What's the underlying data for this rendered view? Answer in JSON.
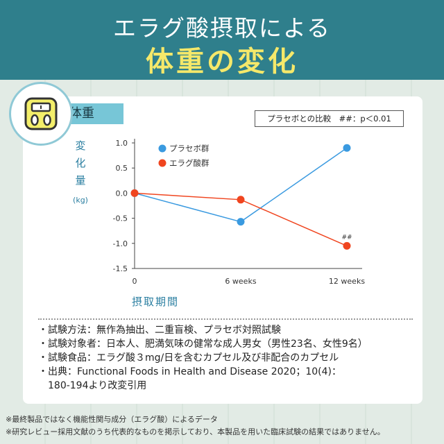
{
  "header": {
    "title_line1": "エラグ酸摂取による",
    "title_line2": "体重の変化"
  },
  "tag_label": "体重",
  "comparison_note": "プラセボとの比較　##：p＜0.01",
  "chart_data": {
    "type": "line",
    "ylabel": "変化量",
    "ylabel_chars": [
      "変",
      "化",
      "量"
    ],
    "yunit": "(kg)",
    "xlabel": "摂取期間",
    "x": [
      "0",
      "6weeks",
      "12weeks"
    ],
    "x_tick_labels": [
      "0",
      "6 weeks",
      "12 weeks"
    ],
    "ylim": [
      -1.5,
      1.0
    ],
    "y_ticks": [
      1.0,
      0.5,
      0.0,
      -0.5,
      -1.0,
      -1.5
    ],
    "y_tick_labels": [
      "1.0",
      "0.5",
      "0.0",
      "-0.5",
      "-1.0",
      "-1.5"
    ],
    "grid": false,
    "legend_position": "top-left",
    "series": [
      {
        "name": "プラセボ群",
        "values": [
          0.0,
          -0.57,
          0.9
        ],
        "color": "#3a9ae0"
      },
      {
        "name": "エラグ酸群",
        "values": [
          0.0,
          -0.13,
          -1.05
        ],
        "color": "#f0451f"
      }
    ],
    "annotations": [
      {
        "text": "##",
        "series": 1,
        "point": 2
      }
    ]
  },
  "notes": [
    "・試験方法：無作為抽出、二重盲検、プラセボ対照試験",
    "・試験対象者：日本人、肥満気味の健常な成人男女（男性23名、女性9名）",
    "・試験食品：エラグ酸３mg/日を含むカプセル及び非配合のカプセル",
    "・出典：Functional Foods in Health and Disease 2020；10(4)：",
    "　180-194より改変引用"
  ],
  "footnotes": [
    "※最終製品ではなく機能性関与成分（エラグ酸）によるデータ",
    "※研究レビュー採用文献のうち代表的なものを掲示しており、本製品を用いた臨床試験の結果ではありません。"
  ],
  "icon": "scale-icon"
}
